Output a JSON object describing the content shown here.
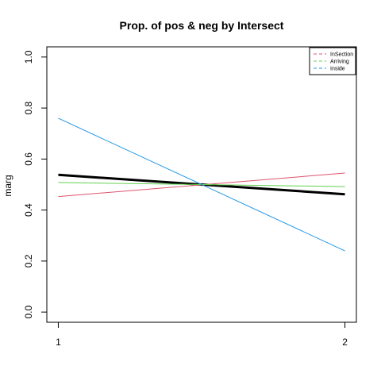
{
  "chart_data": {
    "type": "line",
    "title": "Prop. of pos & neg by Intersect",
    "xlabel": "",
    "ylabel": "marg",
    "x": [
      1,
      2
    ],
    "x_tick_labels": [
      "1",
      "2"
    ],
    "xlim": [
      0.96,
      2.04
    ],
    "ylim": [
      -0.04,
      1.04
    ],
    "y_ticks": [
      0.0,
      0.2,
      0.4,
      0.6,
      0.8,
      1.0
    ],
    "y_tick_labels": [
      "0.0",
      "0.2",
      "0.4",
      "0.6",
      "0.8",
      "1.0"
    ],
    "series": [
      {
        "name": "",
        "color": "#000000",
        "thick": true,
        "values": [
          0.538,
          0.462
        ]
      },
      {
        "name": "InSection",
        "color": "#df536b",
        "thick": false,
        "values": [
          0.453,
          0.545
        ]
      },
      {
        "name": "Arriving",
        "color": "#61d04f",
        "thick": false,
        "values": [
          0.508,
          0.492
        ]
      },
      {
        "name": "Inside",
        "color": "#2297e6",
        "thick": false,
        "values": [
          0.76,
          0.24
        ]
      }
    ],
    "legend": {
      "placement": "top-right",
      "entries": [
        {
          "label": "InSection",
          "color": "#df536b"
        },
        {
          "label": "Arriving",
          "color": "#61d04f"
        },
        {
          "label": "Inside",
          "color": "#2297e6"
        }
      ]
    },
    "grid": false
  }
}
